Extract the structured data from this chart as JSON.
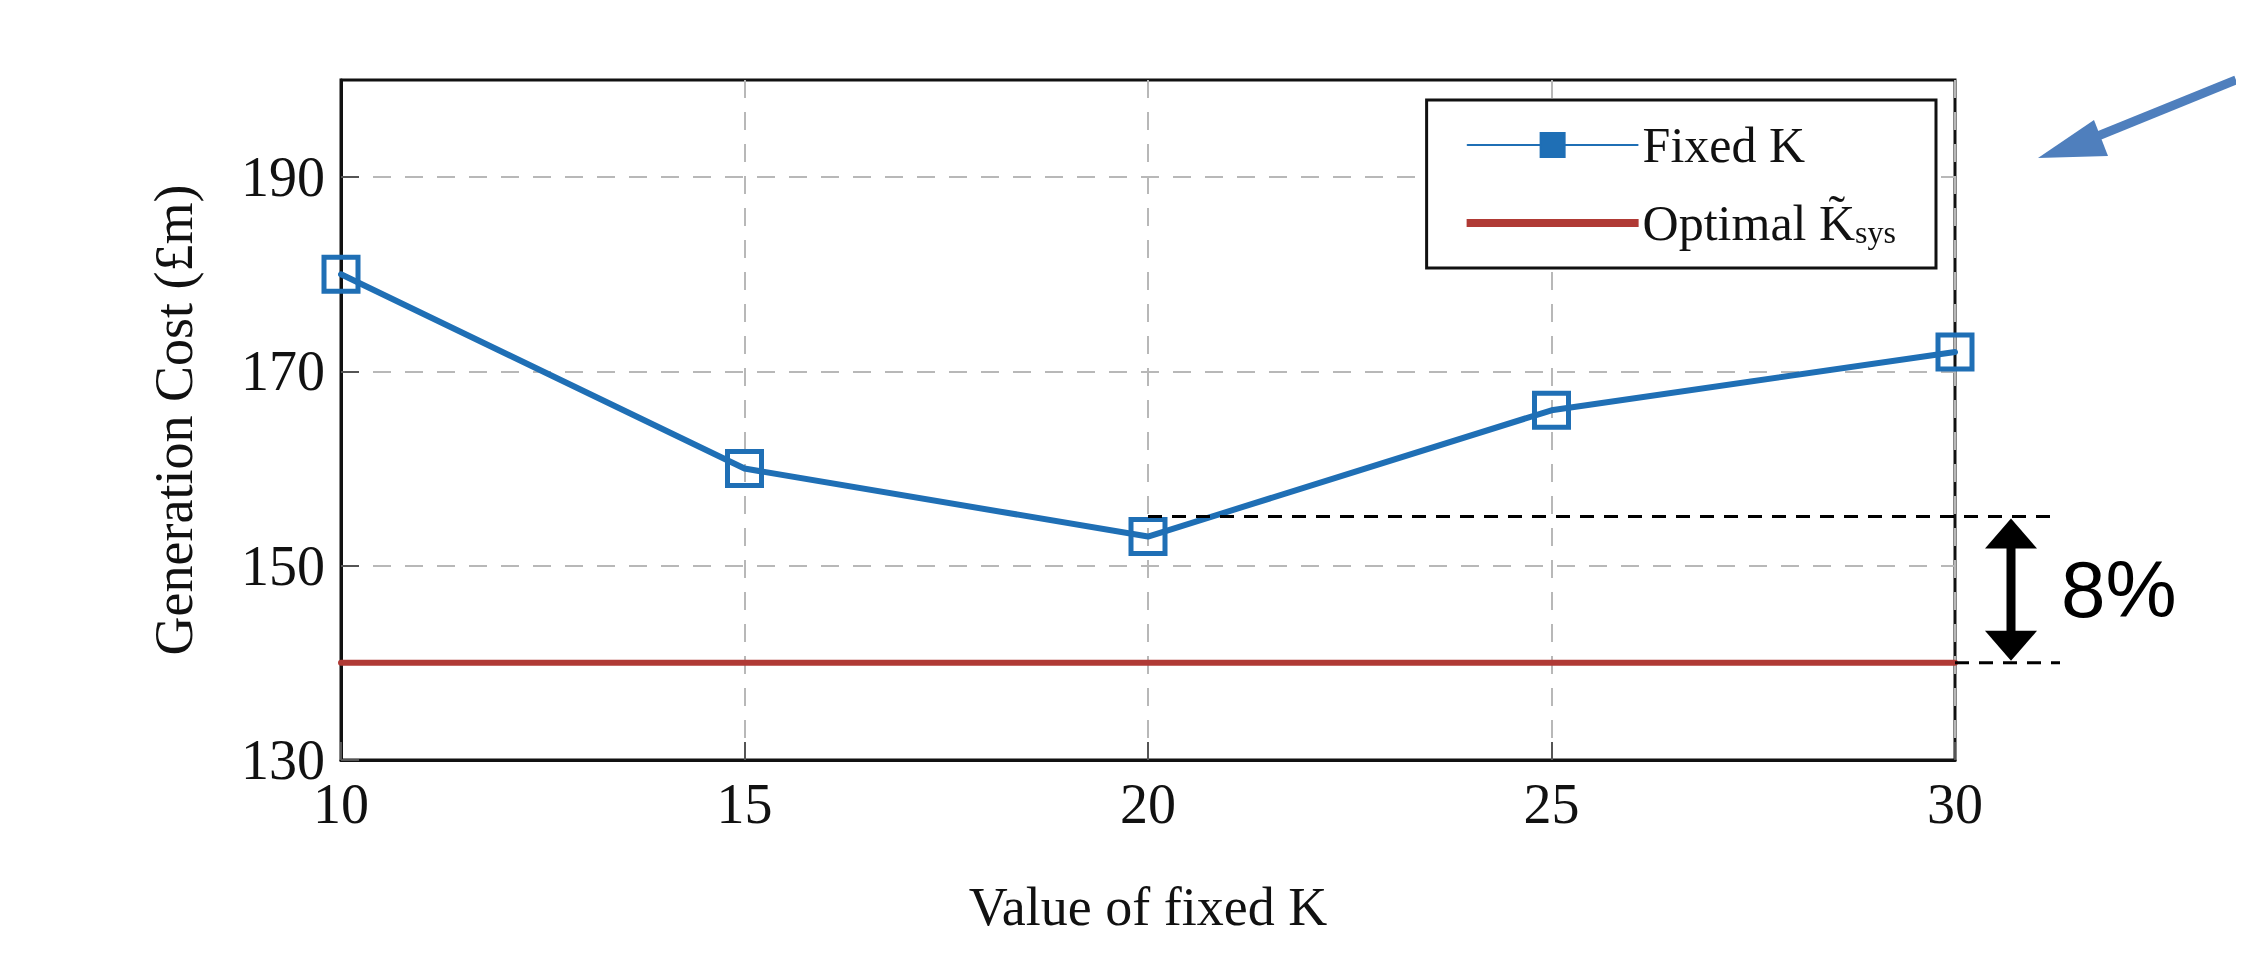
{
  "chart_data": {
    "type": "line",
    "xlabel": "Value of fixed K",
    "ylabel": "Generation Cost (£m)",
    "x": [
      10,
      15,
      20,
      25,
      30
    ],
    "xlim": [
      10,
      30
    ],
    "xticks": [
      10,
      15,
      20,
      25,
      30
    ],
    "ylim": [
      130,
      200
    ],
    "yticks": [
      130,
      150,
      170,
      190
    ],
    "grid": true,
    "legend": "top right",
    "marker": "square",
    "line_style": "solid",
    "series": [
      {
        "name": "Fixed K",
        "color": "#1f6fb5",
        "values": [
          180,
          160,
          153,
          166,
          172
        ]
      },
      {
        "name": "Optimal K̃$_{sys}$",
        "color": "#b03a35",
        "x": [
          10,
          30
        ],
        "values": [
          140,
          140
        ],
        "marker": "none"
      }
    ],
    "annotations": [
      "8%"
    ]
  }
}
